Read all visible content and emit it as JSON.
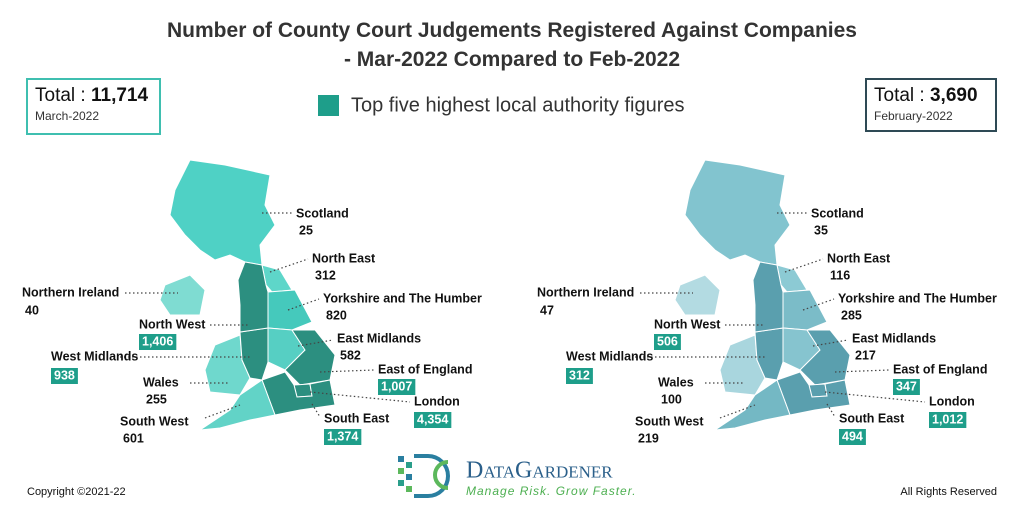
{
  "header": {
    "title": "Number of County Court Judgements Registered Against Companies - Mar-2022 Compared to Feb-2022",
    "legend": "Top five highest local authority figures"
  },
  "panels": [
    {
      "total_label": "Total : ",
      "total": "11,714",
      "period": "March-2022",
      "regions": [
        {
          "name": "Scotland",
          "value": "25",
          "highlighted": false
        },
        {
          "name": "North East",
          "value": "312",
          "highlighted": false
        },
        {
          "name": "Yorkshire and The Humber",
          "value": "820",
          "highlighted": false
        },
        {
          "name": "East Midlands",
          "value": "582",
          "highlighted": false
        },
        {
          "name": "East of England",
          "value": "1,007",
          "highlighted": true
        },
        {
          "name": "London",
          "value": "4,354",
          "highlighted": true
        },
        {
          "name": "South East",
          "value": "1,374",
          "highlighted": true
        },
        {
          "name": "South West",
          "value": "601",
          "highlighted": false
        },
        {
          "name": "Wales",
          "value": "255",
          "highlighted": false
        },
        {
          "name": "West Midlands",
          "value": "938",
          "highlighted": true
        },
        {
          "name": "North West",
          "value": "1,406",
          "highlighted": true
        },
        {
          "name": "Northern Ireland",
          "value": "40",
          "highlighted": false
        }
      ]
    },
    {
      "total_label": "Total : ",
      "total": "3,690",
      "period": "February-2022",
      "regions": [
        {
          "name": "Scotland",
          "value": "35",
          "highlighted": false
        },
        {
          "name": "North East",
          "value": "116",
          "highlighted": false
        },
        {
          "name": "Yorkshire and The Humber",
          "value": "285",
          "highlighted": false
        },
        {
          "name": "East Midlands",
          "value": "217",
          "highlighted": false
        },
        {
          "name": "East of England",
          "value": "347",
          "highlighted": true
        },
        {
          "name": "London",
          "value": "1,012",
          "highlighted": true
        },
        {
          "name": "South East",
          "value": "494",
          "highlighted": true
        },
        {
          "name": "South West",
          "value": "219",
          "highlighted": false
        },
        {
          "name": "Wales",
          "value": "100",
          "highlighted": false
        },
        {
          "name": "West Midlands",
          "value": "312",
          "highlighted": true
        },
        {
          "name": "North West",
          "value": "506",
          "highlighted": true
        },
        {
          "name": "Northern Ireland",
          "value": "47",
          "highlighted": false
        }
      ]
    }
  ],
  "footer": {
    "copyright": "Copyright ©2021-22",
    "brand": "DataGardener",
    "tagline": "Manage Risk. Grow Faster.",
    "rights": "All Rights Reserved"
  }
}
